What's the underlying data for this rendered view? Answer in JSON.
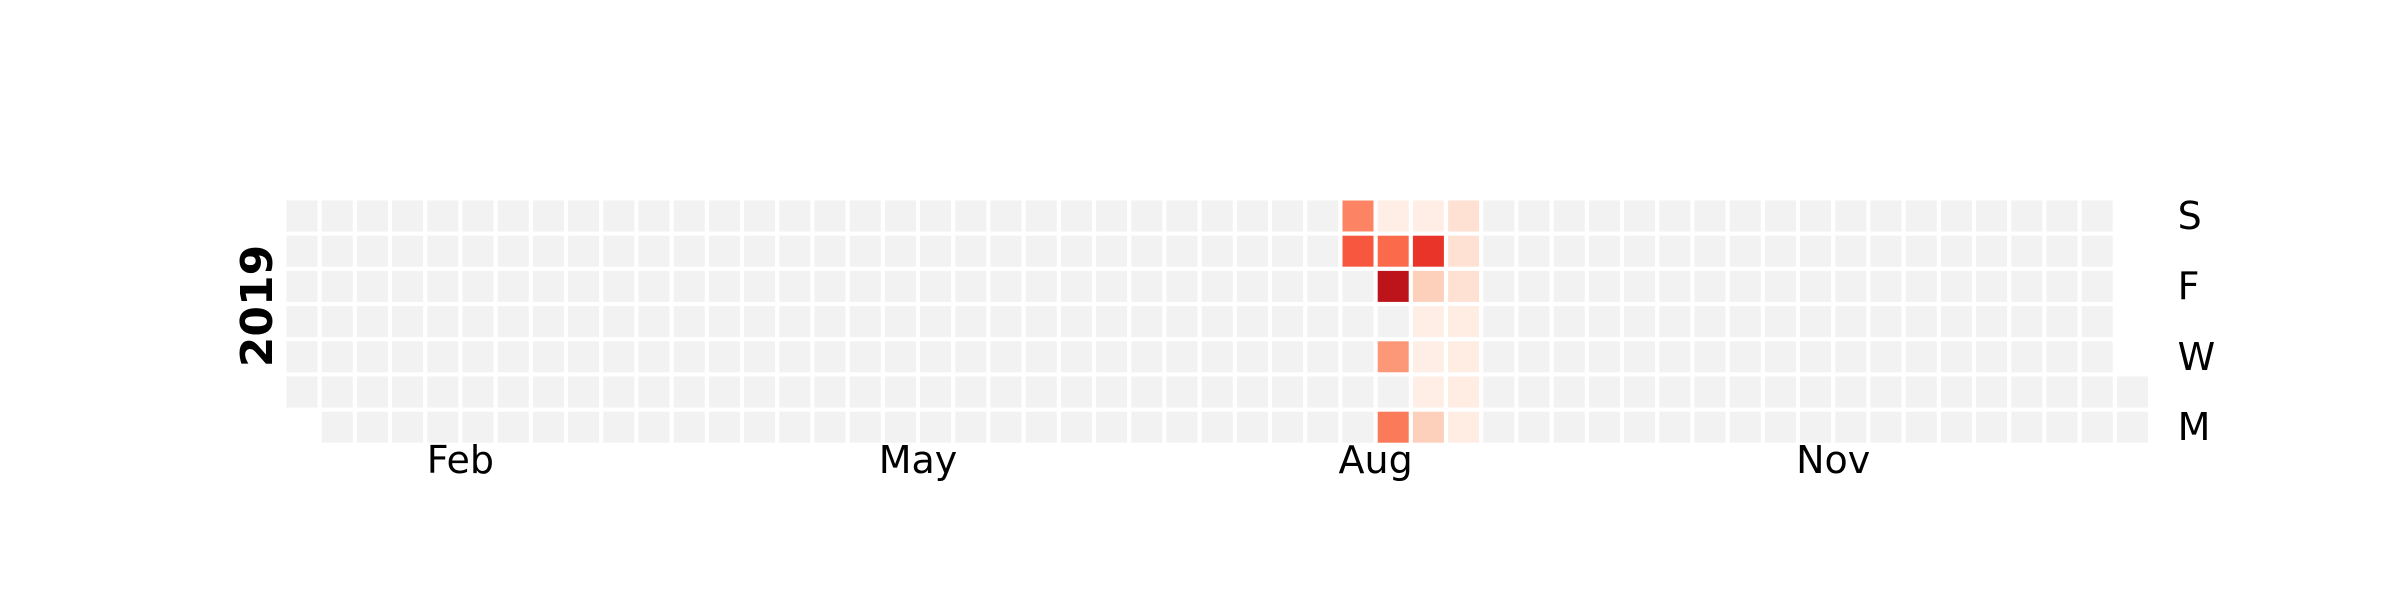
{
  "chart_data": {
    "type": "heatmap",
    "title": "",
    "year": "2019",
    "year_label": "2019",
    "start_date": "2019-01-01",
    "end_date": "2019-12-31",
    "week_start": "Monday",
    "day_labels": [
      "M",
      "",
      "W",
      "",
      "F",
      "",
      "S"
    ],
    "month_labels": [
      "Feb",
      "May",
      "Aug",
      "Nov"
    ],
    "colormap": "Reds",
    "empty_color": "#f2f2f2",
    "vmax": 1.0,
    "grid": false,
    "values": [
      {
        "date": "2019-08-03",
        "value": 0.55
      },
      {
        "date": "2019-08-04",
        "value": 0.42
      },
      {
        "date": "2019-08-05",
        "value": 0.45
      },
      {
        "date": "2019-08-07",
        "value": 0.36
      },
      {
        "date": "2019-08-09",
        "value": 0.8
      },
      {
        "date": "2019-08-10",
        "value": 0.5
      },
      {
        "date": "2019-08-11",
        "value": 0.04
      },
      {
        "date": "2019-08-12",
        "value": 0.18
      },
      {
        "date": "2019-08-13",
        "value": 0.04
      },
      {
        "date": "2019-08-14",
        "value": 0.04
      },
      {
        "date": "2019-08-15",
        "value": 0.04
      },
      {
        "date": "2019-08-16",
        "value": 0.18
      },
      {
        "date": "2019-08-17",
        "value": 0.65
      },
      {
        "date": "2019-08-18",
        "value": 0.04
      },
      {
        "date": "2019-08-19",
        "value": 0.05
      },
      {
        "date": "2019-08-20",
        "value": 0.05
      },
      {
        "date": "2019-08-21",
        "value": 0.05
      },
      {
        "date": "2019-08-22",
        "value": 0.05
      },
      {
        "date": "2019-08-23",
        "value": 0.12
      },
      {
        "date": "2019-08-24",
        "value": 0.12
      },
      {
        "date": "2019-08-25",
        "value": 0.12
      }
    ]
  }
}
